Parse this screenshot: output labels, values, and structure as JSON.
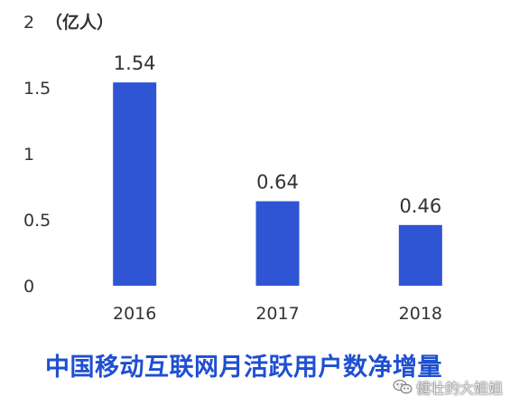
{
  "chart_data": {
    "type": "bar",
    "title": "中国移动互联网月活跃用户数净增量",
    "unit_label": "（亿人）",
    "categories": [
      "2016",
      "2017",
      "2018"
    ],
    "values": [
      1.54,
      0.64,
      0.46
    ],
    "data_labels": [
      "1.54",
      "0.64",
      "0.46"
    ],
    "y_ticks": [
      "0",
      "0.5",
      "1",
      "1.5",
      "2"
    ],
    "ylim": [
      0,
      2
    ],
    "grid": false,
    "bar_color": "#2f55d4",
    "title_color": "#1f4fd1"
  },
  "watermark": {
    "text": "健壮的大姐姐",
    "icon": "wechat-icon"
  }
}
